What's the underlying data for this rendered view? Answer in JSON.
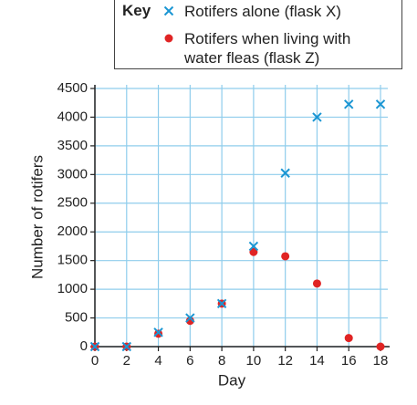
{
  "chart_data": {
    "type": "scatter",
    "x_label": "Day",
    "y_label": "Number of rotifers",
    "legend_title": "Key",
    "series": [
      {
        "name": "Rotifers alone (flask X)",
        "color": "#1b96d3",
        "marker": "x",
        "x": [
          0,
          2,
          4,
          6,
          8,
          10,
          12,
          14,
          16,
          18
        ],
        "values": [
          0,
          0,
          250,
          500,
          750,
          1750,
          3025,
          4000,
          4225,
          4225
        ]
      },
      {
        "name": "Rotifers when living with water fleas (flask Z)",
        "color": "#e02424",
        "marker": "o",
        "x": [
          0,
          2,
          4,
          6,
          8,
          10,
          12,
          14,
          16,
          18
        ],
        "values": [
          0,
          0,
          225,
          450,
          750,
          1650,
          1575,
          1100,
          150,
          0
        ]
      }
    ],
    "xlim": [
      0,
      18
    ],
    "xticks": [
      0,
      2,
      4,
      6,
      8,
      10,
      12,
      14,
      16,
      18
    ],
    "ylim": [
      0,
      4500
    ],
    "yticks": [
      0,
      500,
      1000,
      1500,
      2000,
      2500,
      3000,
      3500,
      4000,
      4500
    ],
    "grid": true
  }
}
